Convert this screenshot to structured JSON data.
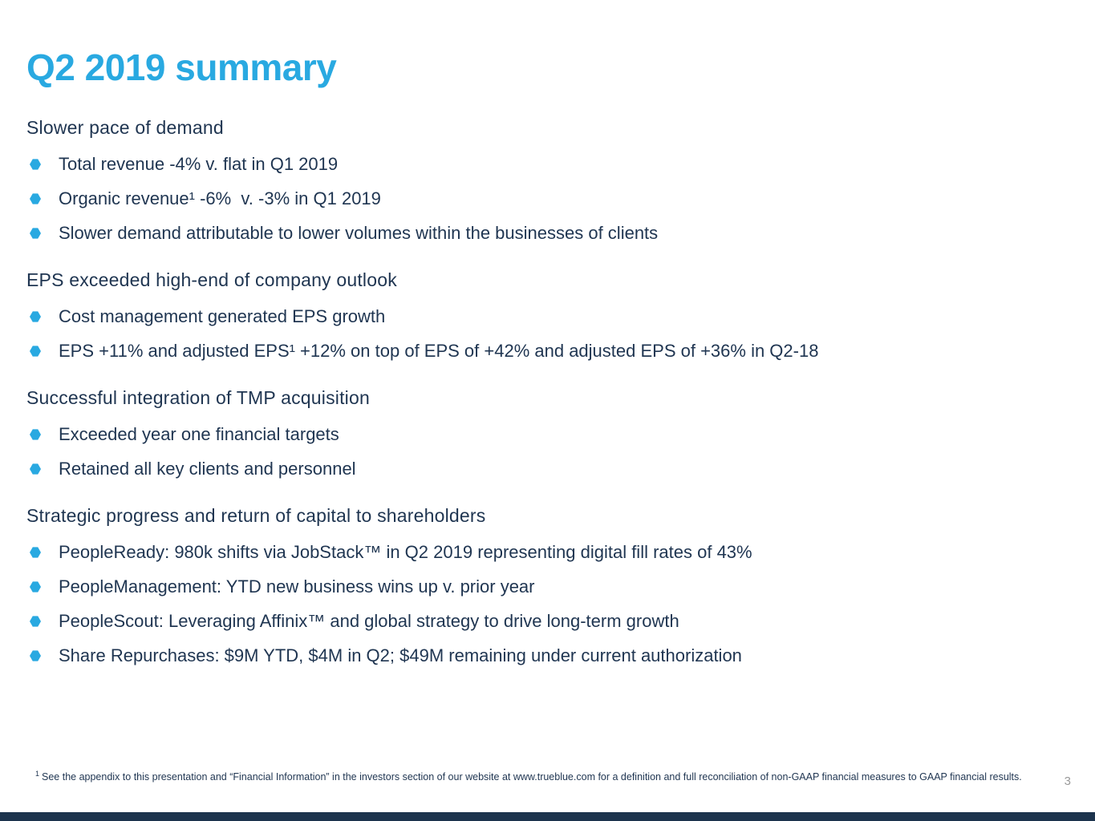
{
  "page": {
    "title": "Q2 2019 summary",
    "page_number": "3",
    "footnote_marker": "1",
    "footnote": "See the appendix to this presentation and “Financial Information” in the investors section of our website at www.trueblue.com for a definition and full reconciliation of non-GAAP financial measures to GAAP financial results."
  },
  "colors": {
    "accent_cyan": "#29A9E1",
    "text_navy": "#1F3551",
    "footer_bar_navy": "#1C334D",
    "page_number_gray": "#9A9A9A",
    "background": "#FFFFFF"
  },
  "icons": {
    "bullet": "hexagon-bullet-icon"
  },
  "sections": [
    {
      "header": "Slower pace of demand",
      "bullets": [
        "Total revenue -4% v. flat in Q1 2019",
        "Organic revenue¹ -6%  v. -3% in Q1 2019",
        "Slower demand attributable to lower volumes within the businesses of clients"
      ]
    },
    {
      "header": "EPS exceeded high-end of company outlook",
      "bullets": [
        "Cost management generated EPS growth",
        "EPS +11% and adjusted EPS¹ +12% on top of EPS of +42% and adjusted EPS of +36% in Q2-18"
      ]
    },
    {
      "header": "Successful integration of TMP acquisition",
      "bullets": [
        "Exceeded year one financial targets",
        "Retained all key clients and personnel"
      ]
    },
    {
      "header": "Strategic progress and return of capital to shareholders",
      "bullets": [
        "PeopleReady: 980k shifts via JobStack™ in Q2 2019 representing digital fill rates of 43%",
        "PeopleManagement: YTD new business wins up v. prior year",
        "PeopleScout: Leveraging Affinix™ and global strategy to drive long-term growth",
        "Share Repurchases: $9M YTD, $4M in Q2; $49M remaining under current authorization"
      ]
    }
  ]
}
